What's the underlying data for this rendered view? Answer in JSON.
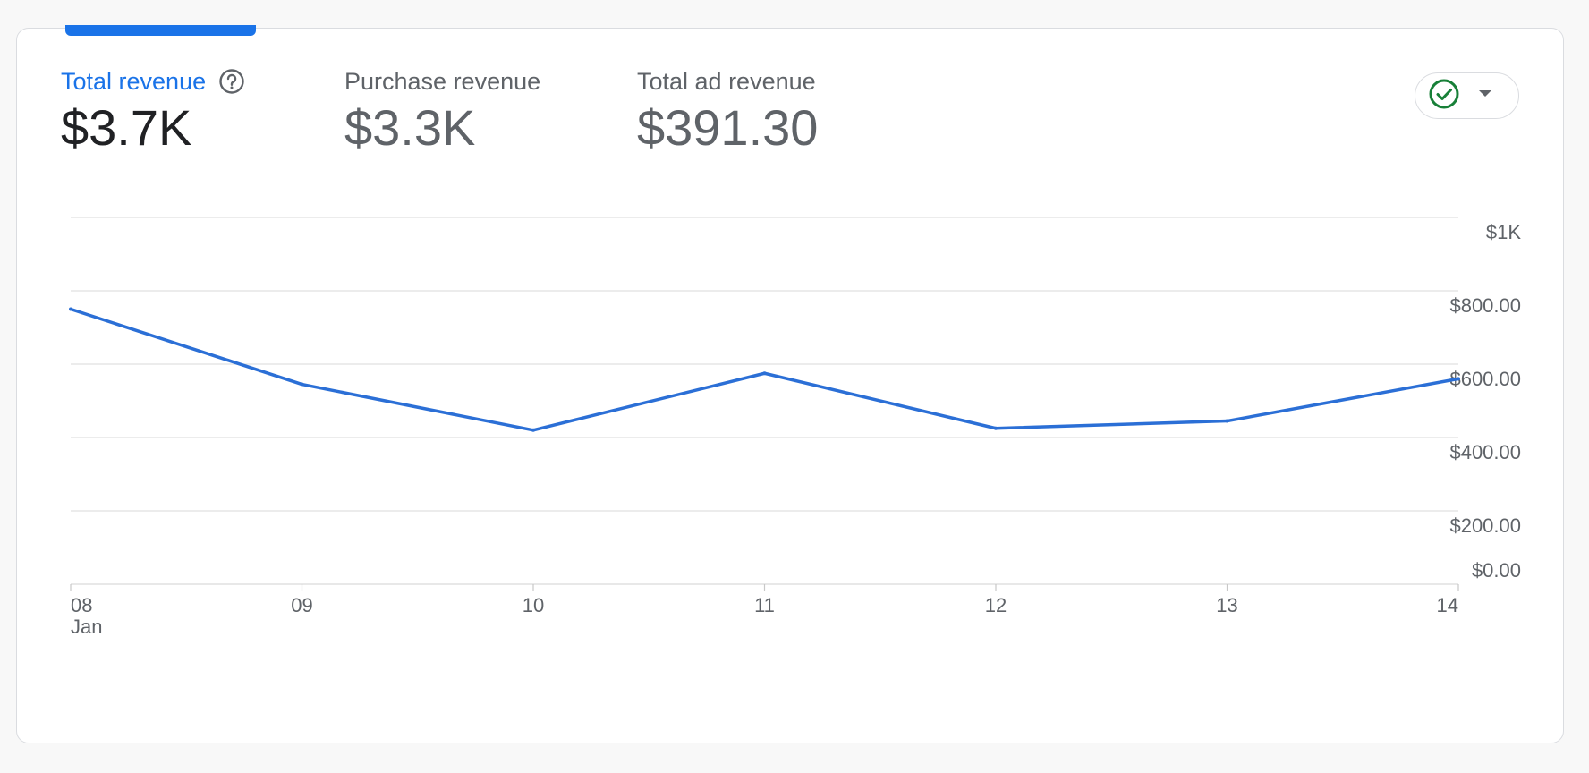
{
  "metrics": [
    {
      "label": "Total revenue",
      "value": "$3.7K",
      "active": true,
      "has_help": true
    },
    {
      "label": "Purchase revenue",
      "value": "$3.3K",
      "active": false
    },
    {
      "label": "Total ad revenue",
      "value": "$391.30",
      "active": false
    }
  ],
  "status": {
    "icon": "check-circle-icon",
    "dropdown_icon": "caret-down-icon",
    "icon_color": "#188038"
  },
  "colors": {
    "accent": "#1a73e8",
    "line": "#2b6fd6",
    "grid": "#e0e0e0"
  },
  "chart_data": {
    "type": "line",
    "x": [
      "08",
      "09",
      "10",
      "11",
      "12",
      "13",
      "14"
    ],
    "x_month_label": "Jan",
    "series": [
      {
        "values": [
          750,
          545,
          420,
          575,
          425,
          445,
          560
        ]
      }
    ],
    "ylim": [
      0,
      1000
    ],
    "y_ticks": [
      {
        "value": 1000,
        "label": "$1K"
      },
      {
        "value": 800,
        "label": "$800.00"
      },
      {
        "value": 600,
        "label": "$600.00"
      },
      {
        "value": 400,
        "label": "$400.00"
      },
      {
        "value": 200,
        "label": "$200.00"
      },
      {
        "value": 0,
        "label": "$0.00"
      }
    ],
    "grid": true
  }
}
